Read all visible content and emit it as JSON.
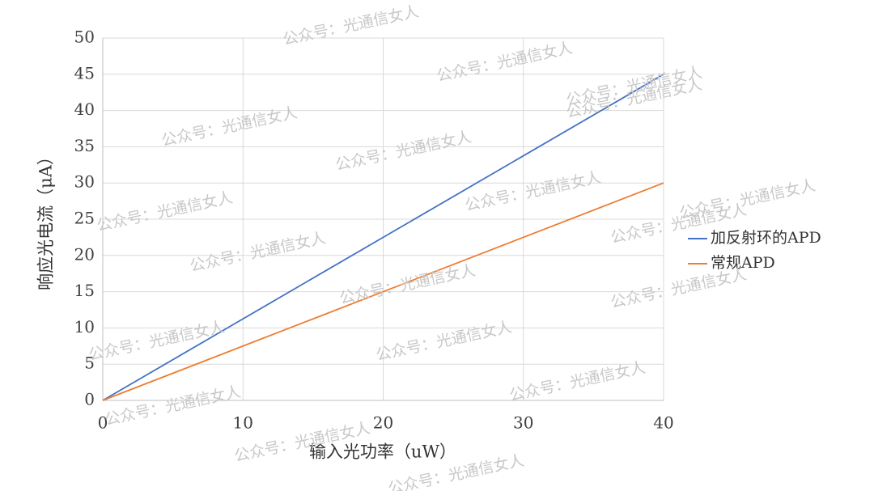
{
  "chart_data": {
    "type": "line",
    "xlabel": "输入光功率（uW）",
    "ylabel": "响应光电流（μA）",
    "x": [
      0,
      40
    ],
    "series": [
      {
        "name": "加反射环的APD",
        "color": "#4472c4",
        "values": [
          0,
          45
        ]
      },
      {
        "name": "常规APD",
        "color": "#ed7d31",
        "values": [
          0,
          30
        ]
      }
    ],
    "xlim": [
      0,
      40
    ],
    "xticks": [
      0,
      10,
      20,
      30,
      40
    ],
    "ylim": [
      0,
      50
    ],
    "yticks": [
      0,
      5,
      10,
      15,
      20,
      25,
      30,
      35,
      40,
      45,
      50
    ],
    "grid": true,
    "legend": "right",
    "watermark": "公众号：光通信女人"
  }
}
